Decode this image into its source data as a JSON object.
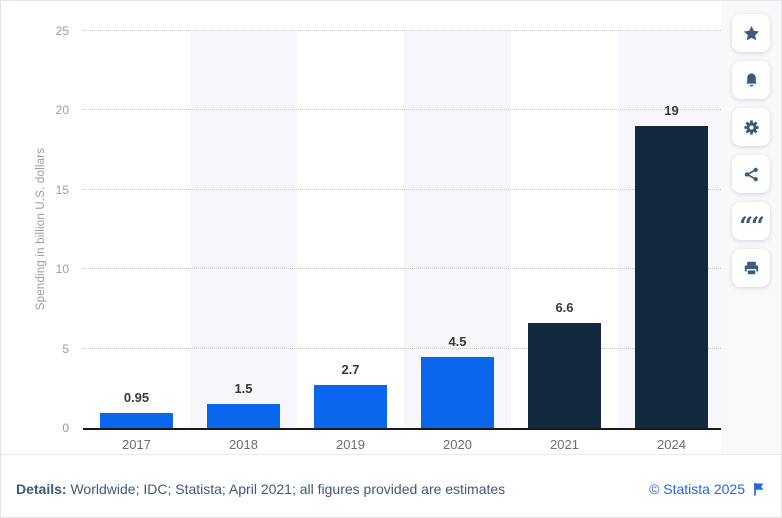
{
  "chart_data": {
    "type": "bar",
    "title": "",
    "categories": [
      "2017",
      "2018",
      "2019",
      "2020",
      "2021",
      "2024"
    ],
    "values": [
      0.95,
      1.5,
      2.7,
      4.5,
      6.6,
      19
    ],
    "labels": [
      "0.95",
      "1.5",
      "2.7",
      "4.5",
      "6.6",
      "19"
    ],
    "bar_colors": [
      "#0a66ec",
      "#0a66ec",
      "#0a66ec",
      "#0a66ec",
      "#132940",
      "#132940"
    ],
    "xlabel": "",
    "ylabel": "Spending in billion U.S. dollars",
    "ylim": [
      0,
      25
    ],
    "yticks": [
      0,
      5,
      10,
      15,
      20,
      25
    ],
    "grid": "horizontal-dotted",
    "band_color": "#f7f6fa",
    "legend": "none"
  },
  "toolbar": {
    "icon_color": "#3b5a80",
    "buttons": [
      {
        "name": "favorite",
        "icon": "star-icon"
      },
      {
        "name": "alerts",
        "icon": "bell-icon"
      },
      {
        "name": "settings",
        "icon": "gear-icon"
      },
      {
        "name": "share",
        "icon": "share-icon"
      },
      {
        "name": "cite",
        "icon": "quote-icon"
      },
      {
        "name": "print",
        "icon": "printer-icon"
      }
    ]
  },
  "footer": {
    "details_label": "Details:",
    "details_text": " Worldwide; IDC; Statista; April 2021; all figures provided are estimates",
    "copyright": "© Statista 2025",
    "copyright_color": "#2563eb",
    "flag_icon": "report-flag"
  }
}
